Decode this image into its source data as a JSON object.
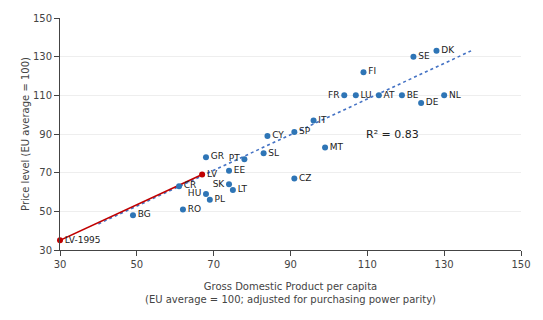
{
  "chart_data": {
    "type": "scatter",
    "xlabel": "Gross Domestic Product per capita\n(EU average = 100; adjusted for purchasing power parity)",
    "ylabel": "Price level (EU average = 100)",
    "xlim": [
      30,
      150
    ],
    "ylim": [
      30,
      150
    ],
    "xticks": [
      30,
      50,
      70,
      90,
      110,
      130,
      150
    ],
    "yticks": [
      30,
      50,
      70,
      90,
      110,
      130,
      150
    ],
    "grid": true,
    "annotations": [
      "R² = 0.83"
    ],
    "series": [
      {
        "type": "line",
        "line_style": "dotted",
        "color": "#4472c4",
        "x": [
          40,
          137
        ],
        "values": [
          43.5,
          133
        ]
      },
      {
        "type": "line",
        "line_style": "solid",
        "color": "#c00000",
        "x": [
          30,
          67
        ],
        "values": [
          35,
          69
        ]
      },
      {
        "type": "scatter",
        "color": "#2e75b6",
        "x": [
          49,
          62,
          61,
          68,
          69,
          75,
          74,
          74,
          78,
          68,
          83,
          84,
          91,
          99,
          91,
          96,
          109,
          107,
          104,
          113,
          119,
          124,
          130,
          122,
          128
        ],
        "values": [
          48,
          51,
          63,
          59,
          56,
          61,
          64,
          71,
          77,
          78,
          80,
          89,
          67,
          83,
          91,
          97,
          122,
          110,
          110,
          110,
          110,
          106,
          110,
          130,
          133
        ],
        "labels": [
          "BG",
          "RO",
          "CR",
          "HU",
          "PL",
          "LT",
          "SK",
          "EE",
          "PT",
          "GR",
          "SL",
          "CY",
          "CZ",
          "MT",
          "SP",
          "IT",
          "FI",
          "LU",
          "FR",
          "AT",
          "BE",
          "DE",
          "NL",
          "SE",
          "DK"
        ]
      },
      {
        "type": "scatter",
        "color": "#c00000",
        "x": [
          30,
          67
        ],
        "values": [
          35,
          69
        ],
        "labels": [
          "LV-1995",
          "LV"
        ]
      }
    ]
  }
}
